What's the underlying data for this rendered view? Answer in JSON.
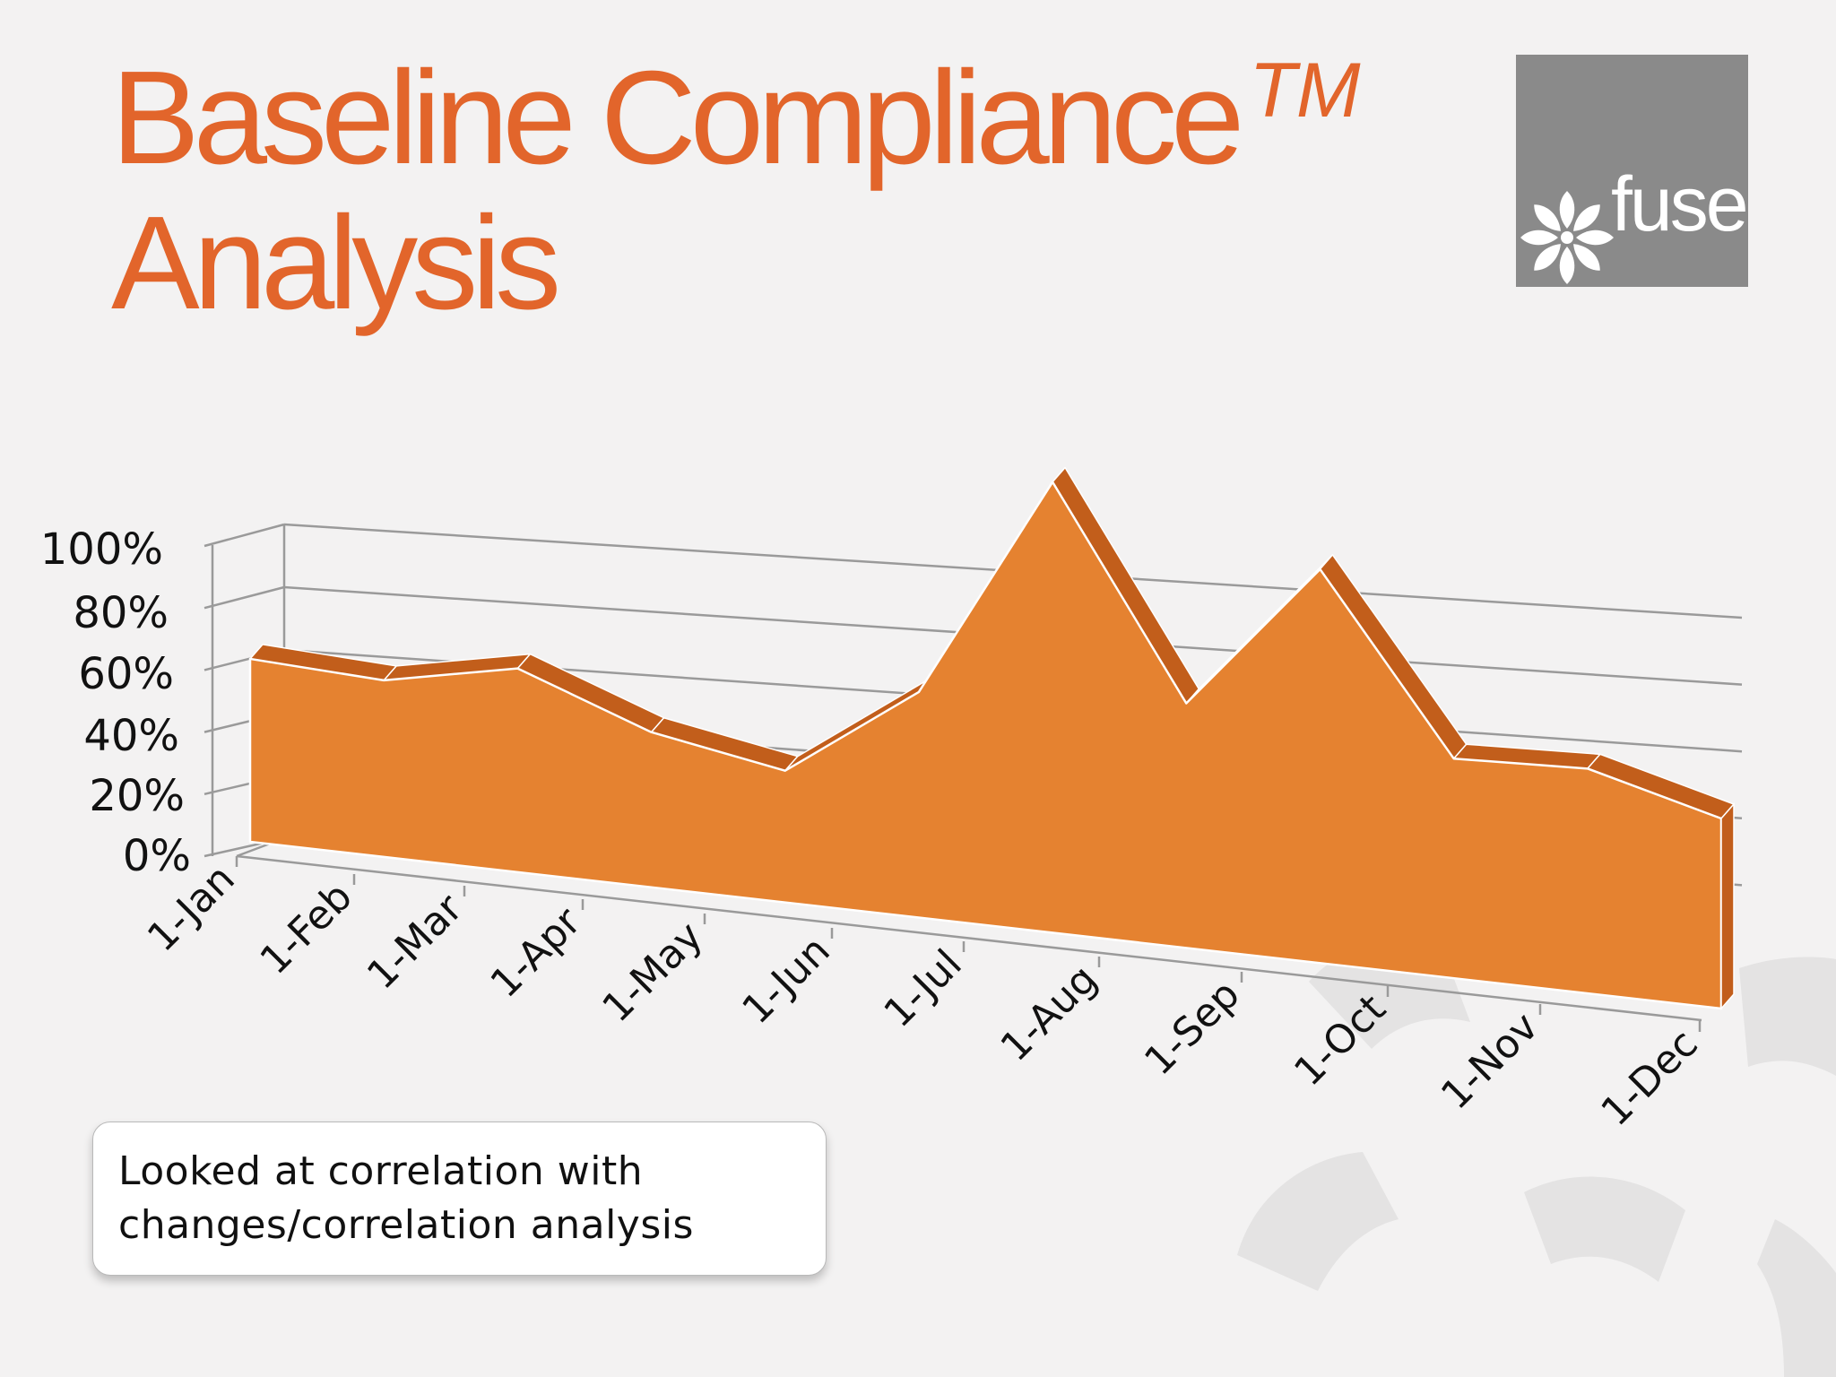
{
  "slide": {
    "title_line1": "Baseline Compliance",
    "title_tm": "TM",
    "title_line2": "Analysis",
    "logo_text": "fuse",
    "note": "Looked at correlation with\nchanges/correlation analysis"
  },
  "colors": {
    "title": "#e2652b",
    "area_front": "#e58230",
    "area_top": "#c25e1b",
    "grid": "#9a9a9a",
    "logo_bg": "#8a8a8a",
    "background": "#f3f2f2"
  },
  "chart_data": {
    "type": "area",
    "categories": [
      "1-Jan",
      "1-Feb",
      "1-Mar",
      "1-Apr",
      "1-May",
      "1-Jun",
      "1-Jul",
      "1-Aug",
      "1-Sep",
      "1-Oct",
      "1-Nov",
      "1-Dec"
    ],
    "values": [
      0.58,
      0.51,
      0.54,
      0.38,
      0.3,
      0.48,
      0.9,
      0.46,
      0.7,
      0.37,
      0.36,
      0.29
    ],
    "yticks": [
      "0%",
      "20%",
      "40%",
      "60%",
      "80%",
      "100%"
    ],
    "ylim": [
      0,
      1
    ],
    "grid": true,
    "style": "3d"
  }
}
